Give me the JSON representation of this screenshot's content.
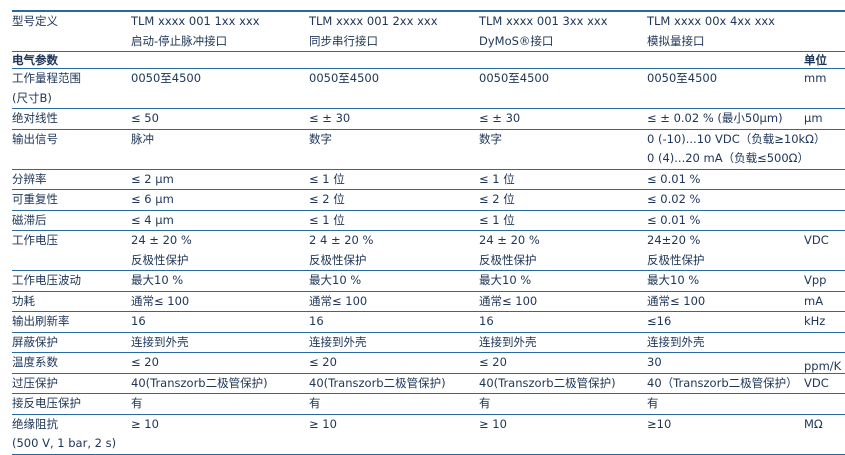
{
  "header": {
    "label": "型号定义",
    "models": [
      {
        "code": "TLM xxxx 001 1xx xxx",
        "desc": "启动-停止脉冲接口"
      },
      {
        "code": "TLM xxxx 001 2xx xxx",
        "desc": "同步串行接口"
      },
      {
        "code": "TLM xxxx 001 3xx xxx",
        "desc": "DyMoS®接口"
      },
      {
        "code": "TLM xxxx 00x 4xx xxx",
        "desc": "模拟量接口"
      }
    ]
  },
  "section": {
    "title": "电气参数",
    "unit_header": "单位"
  },
  "rows": [
    {
      "label": [
        "工作量程范围",
        "(尺寸B)"
      ],
      "values": [
        [
          "0050至4500"
        ],
        [
          "0050至4500"
        ],
        [
          "0050至4500"
        ],
        [
          "0050至4500"
        ]
      ],
      "unit": "mm"
    },
    {
      "label": [
        "绝对线性"
      ],
      "values": [
        [
          "≤ 50"
        ],
        [
          "≤ ± 30"
        ],
        [
          "≤ ± 30"
        ],
        [
          "≤ ± 0.02 % (最小50μm)"
        ]
      ],
      "unit": "μm"
    },
    {
      "label": [
        "输出信号"
      ],
      "values": [
        [
          "脉冲"
        ],
        [
          "数字"
        ],
        [
          "数字"
        ],
        [
          "0 (-10)...10 VDC（负载≥10kΩ）",
          "0 (4)...20 mA（负载≤500Ω）"
        ]
      ],
      "unit": ""
    },
    {
      "label": [
        "分辨率"
      ],
      "values": [
        [
          "≤ 2 μm"
        ],
        [
          "≤ 1 位"
        ],
        [
          "≤ 1 位"
        ],
        [
          "≤ 0.01 %"
        ]
      ],
      "unit": ""
    },
    {
      "label": [
        "可重复性"
      ],
      "values": [
        [
          "≤ 6 μm"
        ],
        [
          "≤ 2 位"
        ],
        [
          "≤ 2 位"
        ],
        [
          "≤ 0.02 %"
        ]
      ],
      "unit": ""
    },
    {
      "label": [
        "磁滞后"
      ],
      "values": [
        [
          "≤ 4 μm"
        ],
        [
          "≤ 1 位"
        ],
        [
          "≤ 1 位"
        ],
        [
          "≤ 0.01 %"
        ]
      ],
      "unit": ""
    },
    {
      "label": [
        "工作电压"
      ],
      "values": [
        [
          "24 ± 20 %",
          "反极性保护"
        ],
        [
          "2 4 ± 20 %",
          "反极性保护"
        ],
        [
          "24 ± 20 %",
          "反极性保护"
        ],
        [
          "24±20 %",
          "反极性保护"
        ]
      ],
      "unit": "VDC"
    },
    {
      "label": [
        "工作电压波动"
      ],
      "values": [
        [
          "最大10 %"
        ],
        [
          "最大10 %"
        ],
        [
          "最大10 %"
        ],
        [
          "最大10 %"
        ]
      ],
      "unit": "Vpp"
    },
    {
      "label": [
        "功耗"
      ],
      "values": [
        [
          "通常≤ 100"
        ],
        [
          "通常≤ 100"
        ],
        [
          "通常≤ 100"
        ],
        [
          "通常≤ 100"
        ]
      ],
      "unit": "mA"
    },
    {
      "label": [
        "输出刷新率"
      ],
      "values": [
        [
          " 16"
        ],
        [
          "16"
        ],
        [
          "16"
        ],
        [
          "≤16"
        ]
      ],
      "unit": "kHz"
    },
    {
      "label": [
        "屏蔽保护"
      ],
      "values": [
        [
          "连接到外壳"
        ],
        [
          "连接到外壳"
        ],
        [
          "连接到外壳"
        ],
        [
          "连接到外壳"
        ]
      ],
      "unit": ""
    },
    {
      "label": [
        "温度系数"
      ],
      "values": [
        [
          "≤ 20"
        ],
        [
          "≤ 20"
        ],
        [
          "≤ 20"
        ],
        [
          "30"
        ]
      ],
      "unit": "ppm/K"
    },
    {
      "label": [
        "过压保护"
      ],
      "values": [
        [
          "40(Transzorb二极管保护)"
        ],
        [
          "40(Transzorb二极管保护)"
        ],
        [
          "40(Transzorb二极管保护)"
        ],
        [
          "40（Transzorb二极管保护）"
        ]
      ],
      "unit": "VDC"
    },
    {
      "label": [
        "接反电压保护"
      ],
      "values": [
        [
          "有"
        ],
        [
          "有"
        ],
        [
          "有"
        ],
        [
          "有"
        ]
      ],
      "unit": ""
    },
    {
      "label": [
        "绝缘阻抗",
        "(500 V, 1 bar, 2 s)"
      ],
      "values": [
        [
          "≥ 10"
        ],
        [
          "≥ 10"
        ],
        [
          "≥ 10"
        ],
        [
          "≥10"
        ]
      ],
      "unit": "MΩ"
    }
  ]
}
